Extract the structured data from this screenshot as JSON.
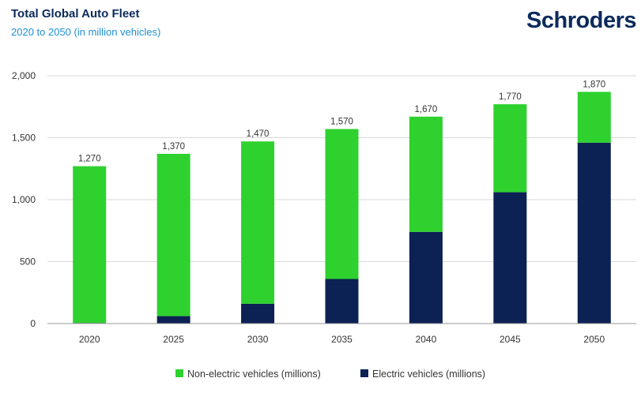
{
  "header": {
    "title": "Total Global Auto Fleet",
    "subtitle": "2020 to 2050 (in million vehicles)",
    "brand": "Schroders"
  },
  "colors": {
    "non_electric": "#2ed12e",
    "electric": "#0c2154",
    "grid": "#d9d9d9",
    "axis": "#999999",
    "title": "#0c2a5b",
    "subtitle": "#1f8fd0"
  },
  "chart_data": {
    "type": "bar",
    "stacked": true,
    "title": "Total Global Auto Fleet",
    "subtitle": "2020 to 2050 (in million vehicles)",
    "categories": [
      "2020",
      "2025",
      "2030",
      "2035",
      "2040",
      "2045",
      "2050"
    ],
    "series": [
      {
        "name": "Electric vehicles (millions)",
        "values": [
          5,
          60,
          160,
          360,
          740,
          1060,
          1460
        ]
      },
      {
        "name": "Non-electric vehicles (millions)",
        "values": [
          1265,
          1310,
          1310,
          1210,
          930,
          710,
          410
        ]
      }
    ],
    "totals": [
      1270,
      1370,
      1470,
      1570,
      1670,
      1770,
      1870
    ],
    "total_labels": [
      "1,270",
      "1,370",
      "1,470",
      "1,570",
      "1,670",
      "1,770",
      "1,870"
    ],
    "yticks": [
      0,
      500,
      1000,
      1500,
      2000
    ],
    "ytick_labels": [
      "0",
      "500",
      "1,000",
      "1,500",
      "2,000"
    ],
    "ylim": [
      0,
      2000
    ],
    "xlabel": "",
    "ylabel": "",
    "grid": true,
    "legend_position": "bottom-center",
    "legend": [
      {
        "label": "Non-electric vehicles (millions)",
        "color_key": "non_electric"
      },
      {
        "label": "Electric vehicles (millions)",
        "color_key": "electric"
      }
    ]
  }
}
